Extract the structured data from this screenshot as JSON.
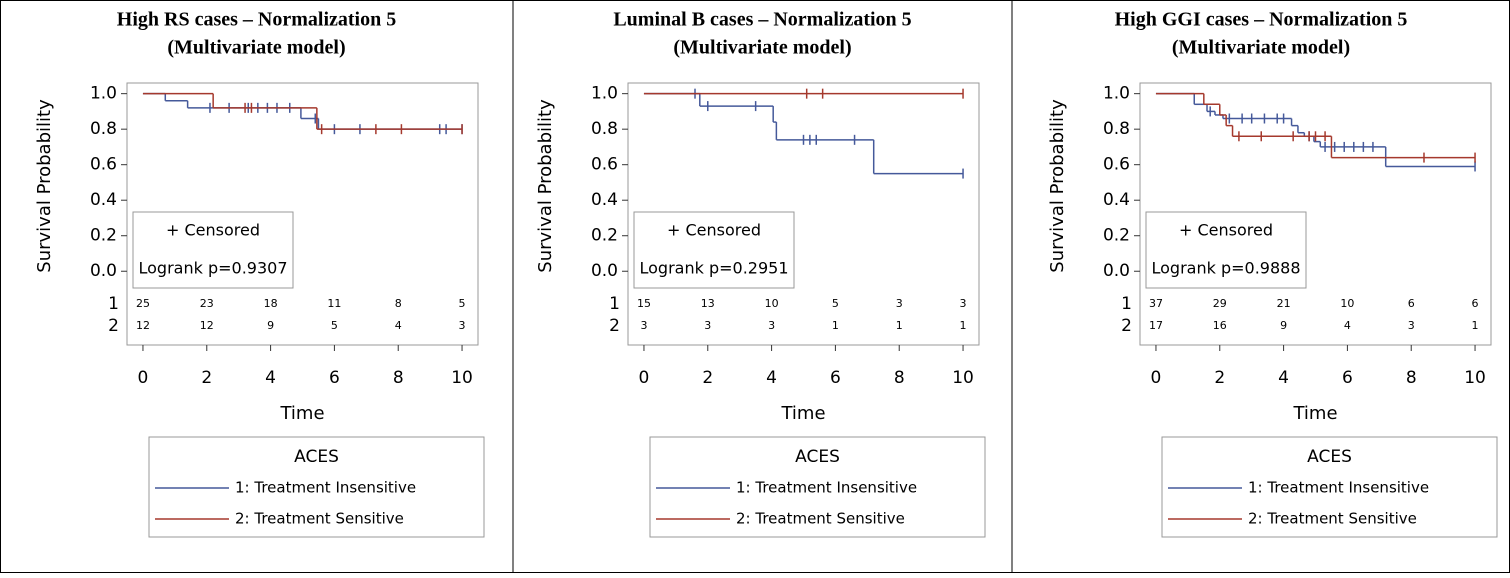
{
  "chart_data": [
    {
      "type": "step",
      "title": "High RS cases – Normalization 5",
      "subtitle": "(Multivariate model)",
      "xlabel": "Time",
      "ylabel": "Survival Probability",
      "xlim": [
        -0.5,
        10.5
      ],
      "ylim": [
        -0.1,
        1.06
      ],
      "xticks": [
        0,
        2,
        4,
        6,
        8,
        10
      ],
      "yticks": [
        {
          "value": 0,
          "label": "0.0"
        },
        0.2,
        0.4,
        0.6,
        0.8,
        {
          "value": 1,
          "label": "1.0"
        }
      ],
      "censor_label": "+ Censored",
      "test_label": "Logrank p=0.9307",
      "legend_title": "ACES",
      "series": [
        {
          "name": "1: Treatment Insensitive",
          "color": "#45599a",
          "x": [
            0,
            0.7,
            1.4,
            4.95,
            5.5
          ],
          "values": [
            1,
            0.96,
            0.92,
            0.86,
            0.8
          ],
          "censor_x": [
            2.1,
            2.7,
            3.3,
            3.6,
            3.9,
            4.2,
            4.6,
            5.4,
            6.0,
            6.8,
            9.3,
            9.5,
            10
          ],
          "censor_values": [
            0.92,
            0.92,
            0.92,
            0.92,
            0.92,
            0.92,
            0.92,
            0.86,
            0.8,
            0.8,
            0.8,
            0.8,
            0.8
          ]
        },
        {
          "name": "2: Treatment Sensitive",
          "color": "#a5392d",
          "x": [
            0,
            2.2,
            5.45
          ],
          "values": [
            1,
            0.92,
            0.8
          ],
          "censor_x": [
            3.2,
            3.4,
            5.6,
            7.3,
            8.1,
            10
          ],
          "censor_values": [
            0.92,
            0.92,
            0.8,
            0.8,
            0.8,
            0.8
          ]
        }
      ],
      "risk_table": {
        "rows": [
          "1",
          "2"
        ],
        "times": [
          0,
          2,
          4,
          6,
          8,
          10
        ],
        "counts": [
          [
            25,
            23,
            18,
            11,
            8,
            5
          ],
          [
            12,
            12,
            9,
            5,
            4,
            3
          ]
        ]
      }
    },
    {
      "type": "step",
      "title": "Luminal B cases – Normalization 5",
      "subtitle": "(Multivariate model)",
      "xlabel": "Time",
      "ylabel": "Survival Probability",
      "xlim": [
        -0.5,
        10.5
      ],
      "ylim": [
        -0.1,
        1.06
      ],
      "xticks": [
        0,
        2,
        4,
        6,
        8,
        10
      ],
      "yticks": [
        {
          "value": 0,
          "label": "0.0"
        },
        0.2,
        0.4,
        0.6,
        0.8,
        {
          "value": 1,
          "label": "1.0"
        }
      ],
      "censor_label": "+ Censored",
      "test_label": "Logrank p=0.2951",
      "legend_title": "ACES",
      "series": [
        {
          "name": "1: Treatment Insensitive",
          "color": "#45599a",
          "x": [
            0,
            1.75,
            4.05,
            4.15,
            7.2
          ],
          "values": [
            1,
            0.93,
            0.84,
            0.74,
            0.55
          ],
          "censor_x": [
            1.6,
            2.0,
            3.5,
            5.0,
            5.2,
            5.4,
            6.6,
            10
          ],
          "censor_values": [
            1,
            0.93,
            0.93,
            0.74,
            0.74,
            0.74,
            0.74,
            0.55
          ]
        },
        {
          "name": "2: Treatment Sensitive",
          "color": "#a5392d",
          "x": [
            0
          ],
          "values": [
            1
          ],
          "censor_x": [
            5.1,
            5.6,
            10
          ],
          "censor_values": [
            1,
            1,
            1
          ]
        }
      ],
      "risk_table": {
        "rows": [
          "1",
          "2"
        ],
        "times": [
          0,
          2,
          4,
          6,
          8,
          10
        ],
        "counts": [
          [
            15,
            13,
            10,
            5,
            3,
            3
          ],
          [
            3,
            3,
            3,
            1,
            1,
            1
          ]
        ]
      }
    },
    {
      "type": "step",
      "title": "High GGI cases – Normalization 5",
      "subtitle": "(Multivariate model)",
      "xlabel": "Time",
      "ylabel": "Survival Probability",
      "xlim": [
        -0.5,
        10.5
      ],
      "ylim": [
        -0.1,
        1.06
      ],
      "xticks": [
        0,
        2,
        4,
        6,
        8,
        10
      ],
      "yticks": [
        {
          "value": 0,
          "label": "0.0"
        },
        0.2,
        0.4,
        0.6,
        0.8,
        {
          "value": 1,
          "label": "1.0"
        }
      ],
      "censor_label": "+ Censored",
      "test_label": "Logrank p=0.9888",
      "legend_title": "ACES",
      "series": [
        {
          "name": "1: Treatment Insensitive",
          "color": "#45599a",
          "x": [
            0,
            1.2,
            1.6,
            1.85,
            2.1,
            4.25,
            4.45,
            4.65,
            4.95,
            5.15,
            7.2
          ],
          "values": [
            1,
            0.94,
            0.9,
            0.88,
            0.86,
            0.82,
            0.78,
            0.76,
            0.73,
            0.7,
            0.59
          ],
          "censor_x": [
            1.7,
            2.3,
            2.7,
            3.0,
            3.4,
            3.8,
            4.0,
            4.8,
            5.3,
            5.6,
            5.9,
            6.2,
            6.5,
            6.8,
            10
          ],
          "censor_values": [
            0.9,
            0.86,
            0.86,
            0.86,
            0.86,
            0.86,
            0.86,
            0.76,
            0.7,
            0.7,
            0.7,
            0.7,
            0.7,
            0.7,
            0.59
          ]
        },
        {
          "name": "2: Treatment Sensitive",
          "color": "#a5392d",
          "x": [
            0,
            1.5,
            2.0,
            2.2,
            2.4,
            5.5
          ],
          "values": [
            1,
            0.94,
            0.88,
            0.82,
            0.76,
            0.64
          ],
          "censor_x": [
            2.6,
            3.3,
            4.3,
            4.8,
            5.0,
            5.3,
            8.4,
            10
          ],
          "censor_values": [
            0.76,
            0.76,
            0.76,
            0.76,
            0.76,
            0.76,
            0.64,
            0.64
          ]
        }
      ],
      "risk_table": {
        "rows": [
          "1",
          "2"
        ],
        "times": [
          0,
          2,
          4,
          6,
          8,
          10
        ],
        "counts": [
          [
            37,
            29,
            21,
            10,
            6,
            6
          ],
          [
            17,
            16,
            9,
            4,
            3,
            1
          ]
        ]
      }
    }
  ]
}
